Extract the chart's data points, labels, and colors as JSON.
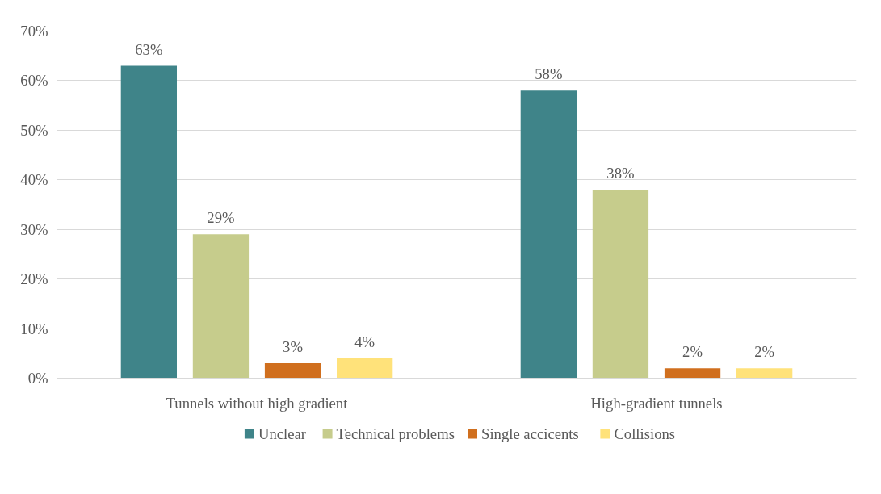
{
  "chart_data": {
    "type": "bar",
    "categories": [
      "Tunnels without high gradient",
      "High-gradient tunnels"
    ],
    "series": [
      {
        "name": "Unclear",
        "color": "#3f8489",
        "values": [
          63,
          58
        ],
        "value_labels": [
          "63%",
          "58%"
        ]
      },
      {
        "name": "Technical problems",
        "color": "#c6cc8c",
        "values": [
          29,
          38
        ],
        "value_labels": [
          "29%",
          "38%"
        ]
      },
      {
        "name": "Single accicents",
        "color": "#d06f1e",
        "values": [
          3,
          2
        ],
        "value_labels": [
          "3%",
          "2%"
        ]
      },
      {
        "name": "Collisions",
        "color": "#ffe27a",
        "values": [
          4,
          2
        ],
        "value_labels": [
          "4%",
          "2%"
        ]
      }
    ],
    "ylim": [
      0,
      70
    ],
    "yticks": [
      {
        "value": 0,
        "label": "0%"
      },
      {
        "value": 10,
        "label": "10%"
      },
      {
        "value": 20,
        "label": "20%"
      },
      {
        "value": 30,
        "label": "30%"
      },
      {
        "value": 40,
        "label": "40%"
      },
      {
        "value": 50,
        "label": "50%"
      },
      {
        "value": 60,
        "label": "60%"
      },
      {
        "value": 70,
        "label": "70%"
      }
    ],
    "grid": "y",
    "legend": "bottom"
  }
}
